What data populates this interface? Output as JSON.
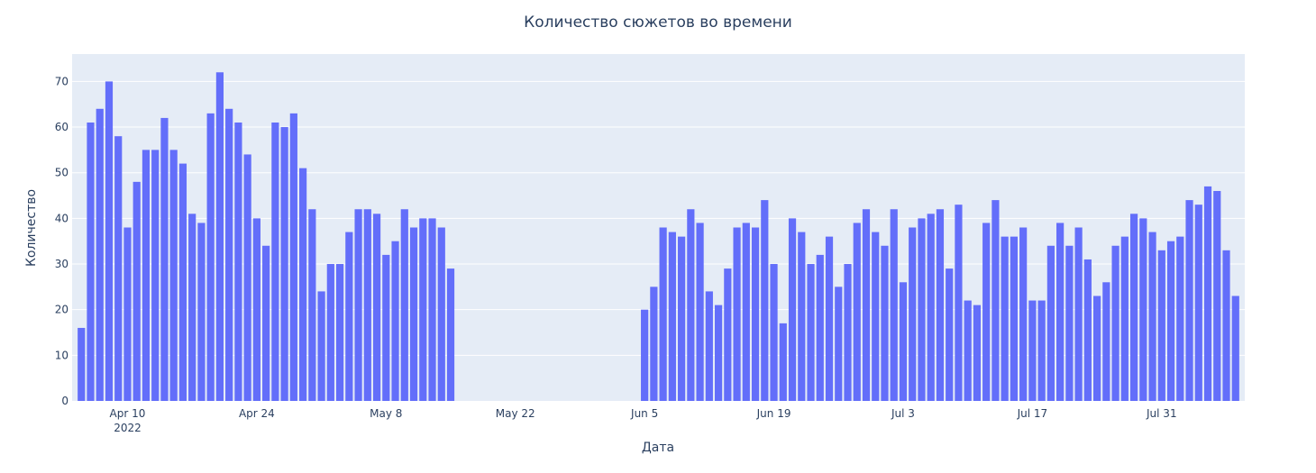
{
  "chart_data": {
    "type": "bar",
    "title": "Количество сюжетов во времени",
    "xlabel": "Дата",
    "ylabel": "Количество",
    "x_start": "2022-04-05",
    "x_range": [
      "2022-04-04",
      "2022-08-09"
    ],
    "ylim": [
      0,
      76
    ],
    "yticks": [
      0,
      10,
      20,
      30,
      40,
      50,
      60,
      70
    ],
    "xticks": [
      {
        "date": "2022-04-10",
        "label": "Apr 10",
        "sublabel": "2022"
      },
      {
        "date": "2022-04-24",
        "label": "Apr 24"
      },
      {
        "date": "2022-05-08",
        "label": "May 8"
      },
      {
        "date": "2022-05-22",
        "label": "May 22"
      },
      {
        "date": "2022-06-05",
        "label": "Jun 5"
      },
      {
        "date": "2022-06-19",
        "label": "Jun 19"
      },
      {
        "date": "2022-07-03",
        "label": "Jul 3"
      },
      {
        "date": "2022-07-17",
        "label": "Jul 17"
      },
      {
        "date": "2022-07-31",
        "label": "Jul 31"
      }
    ],
    "grid": true,
    "bar_color": "#636efa",
    "plot_bg": "#e5ecf6",
    "values": [
      16,
      61,
      64,
      70,
      58,
      38,
      48,
      55,
      55,
      62,
      55,
      52,
      41,
      39,
      63,
      72,
      64,
      61,
      54,
      40,
      34,
      61,
      60,
      63,
      51,
      42,
      24,
      30,
      30,
      37,
      42,
      42,
      41,
      32,
      35,
      42,
      38,
      40,
      40,
      38,
      29,
      0,
      0,
      0,
      0,
      0,
      0,
      0,
      0,
      0,
      0,
      0,
      0,
      0,
      0,
      0,
      0,
      0,
      0,
      0,
      0,
      20,
      25,
      38,
      37,
      36,
      42,
      39,
      24,
      21,
      29,
      38,
      39,
      38,
      44,
      30,
      17,
      40,
      37,
      30,
      32,
      36,
      25,
      30,
      39,
      42,
      37,
      34,
      42,
      26,
      38,
      40,
      41,
      42,
      29,
      43,
      22,
      21,
      39,
      44,
      36,
      36,
      38,
      22,
      22,
      34,
      39,
      34,
      38,
      31,
      23,
      26,
      34,
      36,
      41,
      40,
      37,
      33,
      35,
      36,
      44,
      43,
      47,
      46,
      33,
      23
    ]
  }
}
